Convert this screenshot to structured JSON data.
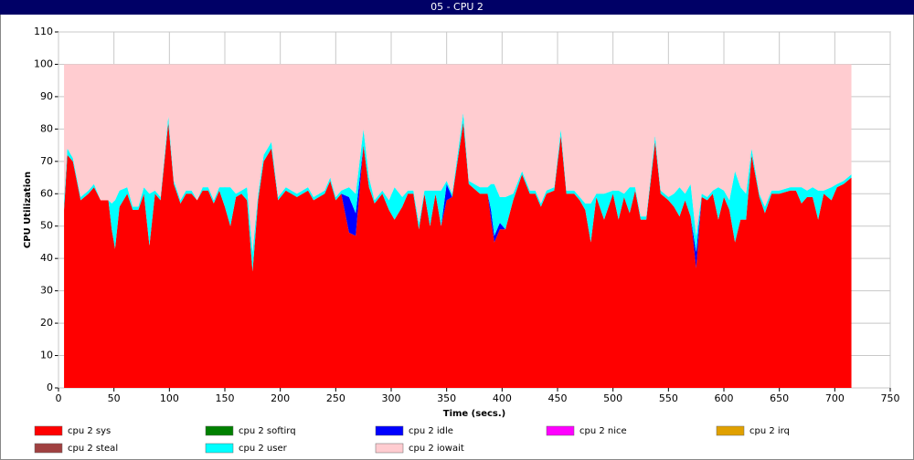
{
  "chart_data": {
    "type": "stacked-area",
    "title": "05 - CPU 2",
    "x_label": "Time (secs.)",
    "y_label": "CPU Utilization",
    "xlim": [
      0,
      750
    ],
    "xticks": [
      0,
      50,
      100,
      150,
      200,
      250,
      300,
      350,
      400,
      450,
      500,
      550,
      600,
      650,
      700,
      750
    ],
    "ylim": [
      0,
      110
    ],
    "yticks": [
      0,
      10,
      20,
      30,
      40,
      50,
      60,
      70,
      80,
      90,
      100,
      110
    ],
    "grid": true,
    "x": [
      5,
      8,
      13,
      20,
      27,
      32,
      38,
      45,
      48,
      51,
      55,
      62,
      67,
      72,
      77,
      82,
      87,
      92,
      99,
      104,
      110,
      115,
      120,
      125,
      130,
      135,
      140,
      145,
      150,
      155,
      160,
      165,
      170,
      175,
      180,
      185,
      192,
      198,
      205,
      215,
      225,
      230,
      240,
      245,
      250,
      255,
      262,
      268,
      275,
      280,
      285,
      292,
      298,
      303,
      310,
      315,
      320,
      325,
      330,
      335,
      340,
      345,
      350,
      355,
      365,
      370,
      380,
      387,
      390,
      393,
      398,
      403,
      410,
      418,
      425,
      430,
      435,
      440,
      447,
      453,
      458,
      465,
      470,
      475,
      480,
      485,
      492,
      500,
      505,
      510,
      515,
      520,
      525,
      530,
      538,
      543,
      550,
      555,
      560,
      565,
      570,
      575,
      580,
      585,
      590,
      595,
      600,
      605,
      610,
      615,
      620,
      625,
      632,
      637,
      643,
      650,
      660,
      665,
      670,
      675,
      680,
      685,
      690,
      697,
      702,
      708,
      715
    ],
    "series": [
      {
        "name": "cpu 2 sys",
        "color": "#ff0000",
        "values": [
          55,
          72,
          70,
          58,
          60,
          62,
          58,
          58,
          49,
          43,
          56,
          60,
          55,
          55,
          60,
          44,
          60,
          58,
          82,
          63,
          57,
          60,
          60,
          58,
          61,
          61,
          57,
          61,
          56,
          50,
          59,
          60,
          58,
          36,
          58,
          70,
          74,
          58,
          61,
          59,
          61,
          58,
          60,
          64,
          58,
          60,
          48,
          47,
          75,
          62,
          57,
          60,
          55,
          52,
          56,
          60,
          60,
          49,
          60,
          50,
          60,
          50,
          58,
          59,
          82,
          63,
          60,
          60,
          52,
          45,
          49,
          49,
          58,
          66,
          60,
          60,
          56,
          60,
          61,
          78,
          60,
          60,
          58,
          55,
          45,
          59,
          52,
          60,
          52,
          59,
          54,
          61,
          52,
          52,
          76,
          60,
          58,
          56,
          53,
          58,
          53,
          37,
          59,
          58,
          60,
          52,
          59,
          55,
          45,
          52,
          52,
          72,
          59,
          54,
          60,
          60,
          61,
          61,
          57,
          59,
          59,
          52,
          60,
          58,
          62,
          63,
          65
        ]
      },
      {
        "name": "cpu 2 softirq",
        "color": "#008000",
        "values": [
          0,
          0,
          0,
          0,
          0,
          0,
          0,
          0,
          0,
          0,
          0,
          0,
          0,
          0,
          0,
          0,
          0,
          0,
          0,
          0,
          0,
          0,
          0,
          0,
          0,
          0,
          0,
          0,
          0,
          0,
          0,
          0,
          0,
          0,
          0,
          0,
          0,
          0,
          0,
          0,
          0,
          0,
          0,
          0,
          0,
          0,
          0,
          0,
          0,
          0,
          0,
          0,
          0,
          0,
          0,
          0,
          0,
          0,
          0,
          0,
          0,
          0,
          0,
          0,
          0,
          0,
          0,
          0,
          0,
          0,
          0,
          0,
          0,
          0,
          0,
          0,
          0,
          0,
          0,
          0,
          0,
          0,
          0,
          0,
          0,
          0,
          0,
          0,
          0,
          0,
          0,
          0,
          0,
          0,
          0,
          0,
          0,
          0,
          0,
          0,
          0,
          0,
          0,
          0,
          0,
          0,
          0,
          0,
          0,
          0,
          0,
          0,
          0,
          0,
          0,
          0,
          0,
          0,
          0,
          0,
          0,
          0,
          0,
          0,
          0,
          0,
          0
        ]
      },
      {
        "name": "cpu 2 idle",
        "color": "#0000ff",
        "values": [
          0,
          0,
          0,
          0,
          0,
          0,
          0,
          0,
          0,
          0,
          0,
          0,
          0,
          0,
          0,
          0,
          0,
          0,
          0,
          0,
          0,
          0,
          0,
          0,
          0,
          0,
          0,
          0,
          0,
          0,
          0,
          0,
          0,
          0,
          0,
          0,
          0,
          0,
          0,
          0,
          0,
          0,
          0,
          0,
          0,
          0,
          11,
          7,
          0,
          0,
          0,
          0,
          0,
          0,
          0,
          0,
          0,
          0,
          0,
          0,
          0,
          0,
          5,
          0,
          0,
          0,
          0,
          0,
          3,
          2,
          2,
          0,
          0,
          0,
          0,
          0,
          0,
          0,
          0,
          0,
          0,
          0,
          0,
          0,
          0,
          0,
          0,
          0,
          0,
          0,
          0,
          0,
          0,
          0,
          0,
          0,
          0,
          0,
          0,
          0,
          0,
          5,
          0,
          0,
          0,
          0,
          0,
          0,
          0,
          0,
          0,
          0,
          0,
          0,
          0,
          0,
          0,
          0,
          0,
          0,
          0,
          0,
          0,
          0,
          0,
          0,
          0
        ]
      },
      {
        "name": "cpu 2 nice",
        "color": "#ff00ff",
        "values": [
          0,
          0,
          0,
          0,
          0,
          0,
          0,
          0,
          0,
          0,
          0,
          0,
          0,
          0,
          0,
          0,
          0,
          0,
          0,
          0,
          0,
          0,
          0,
          0,
          0,
          0,
          0,
          0,
          0,
          0,
          0,
          0,
          0,
          0,
          0,
          0,
          0,
          0,
          0,
          0,
          0,
          0,
          0,
          0,
          0,
          0,
          0,
          0,
          0,
          0,
          0,
          0,
          0,
          0,
          0,
          0,
          0,
          0,
          0,
          0,
          0,
          0,
          0,
          0,
          0,
          0,
          0,
          0,
          0,
          0,
          0,
          0,
          0,
          0,
          0,
          0,
          0,
          0,
          0,
          0,
          0,
          0,
          0,
          0,
          0,
          0,
          0,
          0,
          0,
          0,
          0,
          0,
          0,
          0,
          0,
          0,
          0,
          0,
          0,
          0,
          0,
          0,
          0,
          0,
          0,
          0,
          0,
          0,
          0,
          0,
          0,
          0,
          0,
          0,
          0,
          0,
          0,
          0,
          0,
          0,
          0,
          0,
          0,
          0,
          0,
          0,
          0
        ]
      },
      {
        "name": "cpu 2 irq",
        "color": "#e0a000",
        "values": [
          0,
          0,
          0,
          0,
          0,
          0,
          0,
          0,
          0,
          0,
          0,
          0,
          0,
          0,
          0,
          0,
          0,
          0,
          0,
          0,
          0,
          0,
          0,
          0,
          0,
          0,
          0,
          0,
          0,
          0,
          0,
          0,
          0,
          0,
          0,
          0,
          0,
          0,
          0,
          0,
          0,
          0,
          0,
          0,
          0,
          0,
          0,
          0,
          0,
          0,
          0,
          0,
          0,
          0,
          0,
          0,
          0,
          0,
          0,
          0,
          0,
          0,
          0,
          0,
          0,
          0,
          0,
          0,
          0,
          0,
          0,
          0,
          0,
          0,
          0,
          0,
          0,
          0,
          0,
          0,
          0,
          0,
          0,
          0,
          0,
          0,
          0,
          0,
          0,
          0,
          0,
          0,
          0,
          0,
          0,
          0,
          0,
          0,
          0,
          0,
          0,
          0,
          0,
          0,
          0,
          0,
          0,
          0,
          0,
          0,
          0,
          0,
          0,
          0,
          0,
          0,
          0,
          0,
          0,
          0,
          0,
          0,
          0,
          0,
          0,
          0,
          0
        ]
      },
      {
        "name": "cpu 2 steal",
        "color": "#a04040",
        "values": [
          0,
          0,
          0,
          0,
          0,
          0,
          0,
          0,
          0,
          0,
          0,
          0,
          0,
          0,
          0,
          0,
          0,
          0,
          0,
          0,
          0,
          0,
          0,
          0,
          0,
          0,
          0,
          0,
          0,
          0,
          0,
          0,
          0,
          0,
          0,
          0,
          0,
          0,
          0,
          0,
          0,
          0,
          0,
          0,
          0,
          0,
          0,
          0,
          0,
          0,
          0,
          0,
          0,
          0,
          0,
          0,
          0,
          0,
          0,
          0,
          0,
          0,
          0,
          0,
          0,
          0,
          0,
          0,
          0,
          0,
          0,
          0,
          0,
          0,
          0,
          0,
          0,
          0,
          0,
          0,
          0,
          0,
          0,
          0,
          0,
          0,
          0,
          0,
          0,
          0,
          0,
          0,
          0,
          0,
          0,
          0,
          0,
          0,
          0,
          0,
          0,
          0,
          0,
          0,
          0,
          0,
          0,
          0,
          0,
          0,
          0,
          0,
          0,
          0,
          0,
          0,
          0,
          0,
          0,
          0,
          0,
          0,
          0,
          0,
          0,
          0,
          0
        ]
      },
      {
        "name": "cpu 2 user",
        "color": "#00ffff",
        "values": [
          3,
          2,
          1,
          1,
          1,
          1,
          0,
          0,
          8,
          15,
          5,
          2,
          1,
          1,
          2,
          16,
          1,
          1,
          2,
          1,
          1,
          1,
          1,
          0,
          1,
          1,
          1,
          1,
          6,
          12,
          1,
          1,
          4,
          6,
          2,
          2,
          2,
          1,
          1,
          1,
          1,
          1,
          1,
          1,
          1,
          1,
          3,
          6,
          5,
          3,
          1,
          1,
          3,
          10,
          3,
          1,
          1,
          2,
          1,
          11,
          1,
          11,
          1,
          1,
          3,
          1,
          2,
          2,
          8,
          16,
          8,
          10,
          2,
          1,
          1,
          1,
          1,
          1,
          1,
          2,
          1,
          1,
          1,
          2,
          12,
          1,
          8,
          1,
          9,
          1,
          8,
          1,
          1,
          1,
          2,
          1,
          1,
          4,
          9,
          2,
          10,
          5,
          1,
          1,
          1,
          10,
          2,
          3,
          22,
          10,
          8,
          2,
          1,
          2,
          1,
          1,
          1,
          1,
          5,
          2,
          3,
          9,
          1,
          4,
          1,
          1,
          1
        ]
      },
      {
        "name": "cpu 2 iowait",
        "color": "#ffccd0",
        "values": [
          42,
          26,
          29,
          41,
          39,
          37,
          42,
          42,
          43,
          42,
          39,
          38,
          44,
          44,
          38,
          40,
          39,
          41,
          16,
          36,
          42,
          39,
          39,
          42,
          38,
          38,
          42,
          38,
          38,
          38,
          40,
          39,
          38,
          58,
          40,
          28,
          24,
          41,
          38,
          40,
          38,
          41,
          39,
          35,
          41,
          39,
          38,
          40,
          20,
          35,
          42,
          39,
          42,
          38,
          41,
          39,
          39,
          49,
          39,
          39,
          39,
          39,
          36,
          40,
          15,
          36,
          38,
          38,
          37,
          37,
          41,
          41,
          40,
          33,
          39,
          39,
          43,
          39,
          38,
          20,
          39,
          39,
          41,
          43,
          43,
          40,
          40,
          39,
          39,
          40,
          38,
          38,
          47,
          47,
          22,
          39,
          41,
          40,
          38,
          40,
          37,
          53,
          40,
          41,
          39,
          38,
          39,
          42,
          33,
          38,
          40,
          26,
          40,
          44,
          39,
          39,
          38,
          38,
          38,
          39,
          38,
          39,
          39,
          38,
          37,
          36,
          34
        ]
      }
    ]
  }
}
